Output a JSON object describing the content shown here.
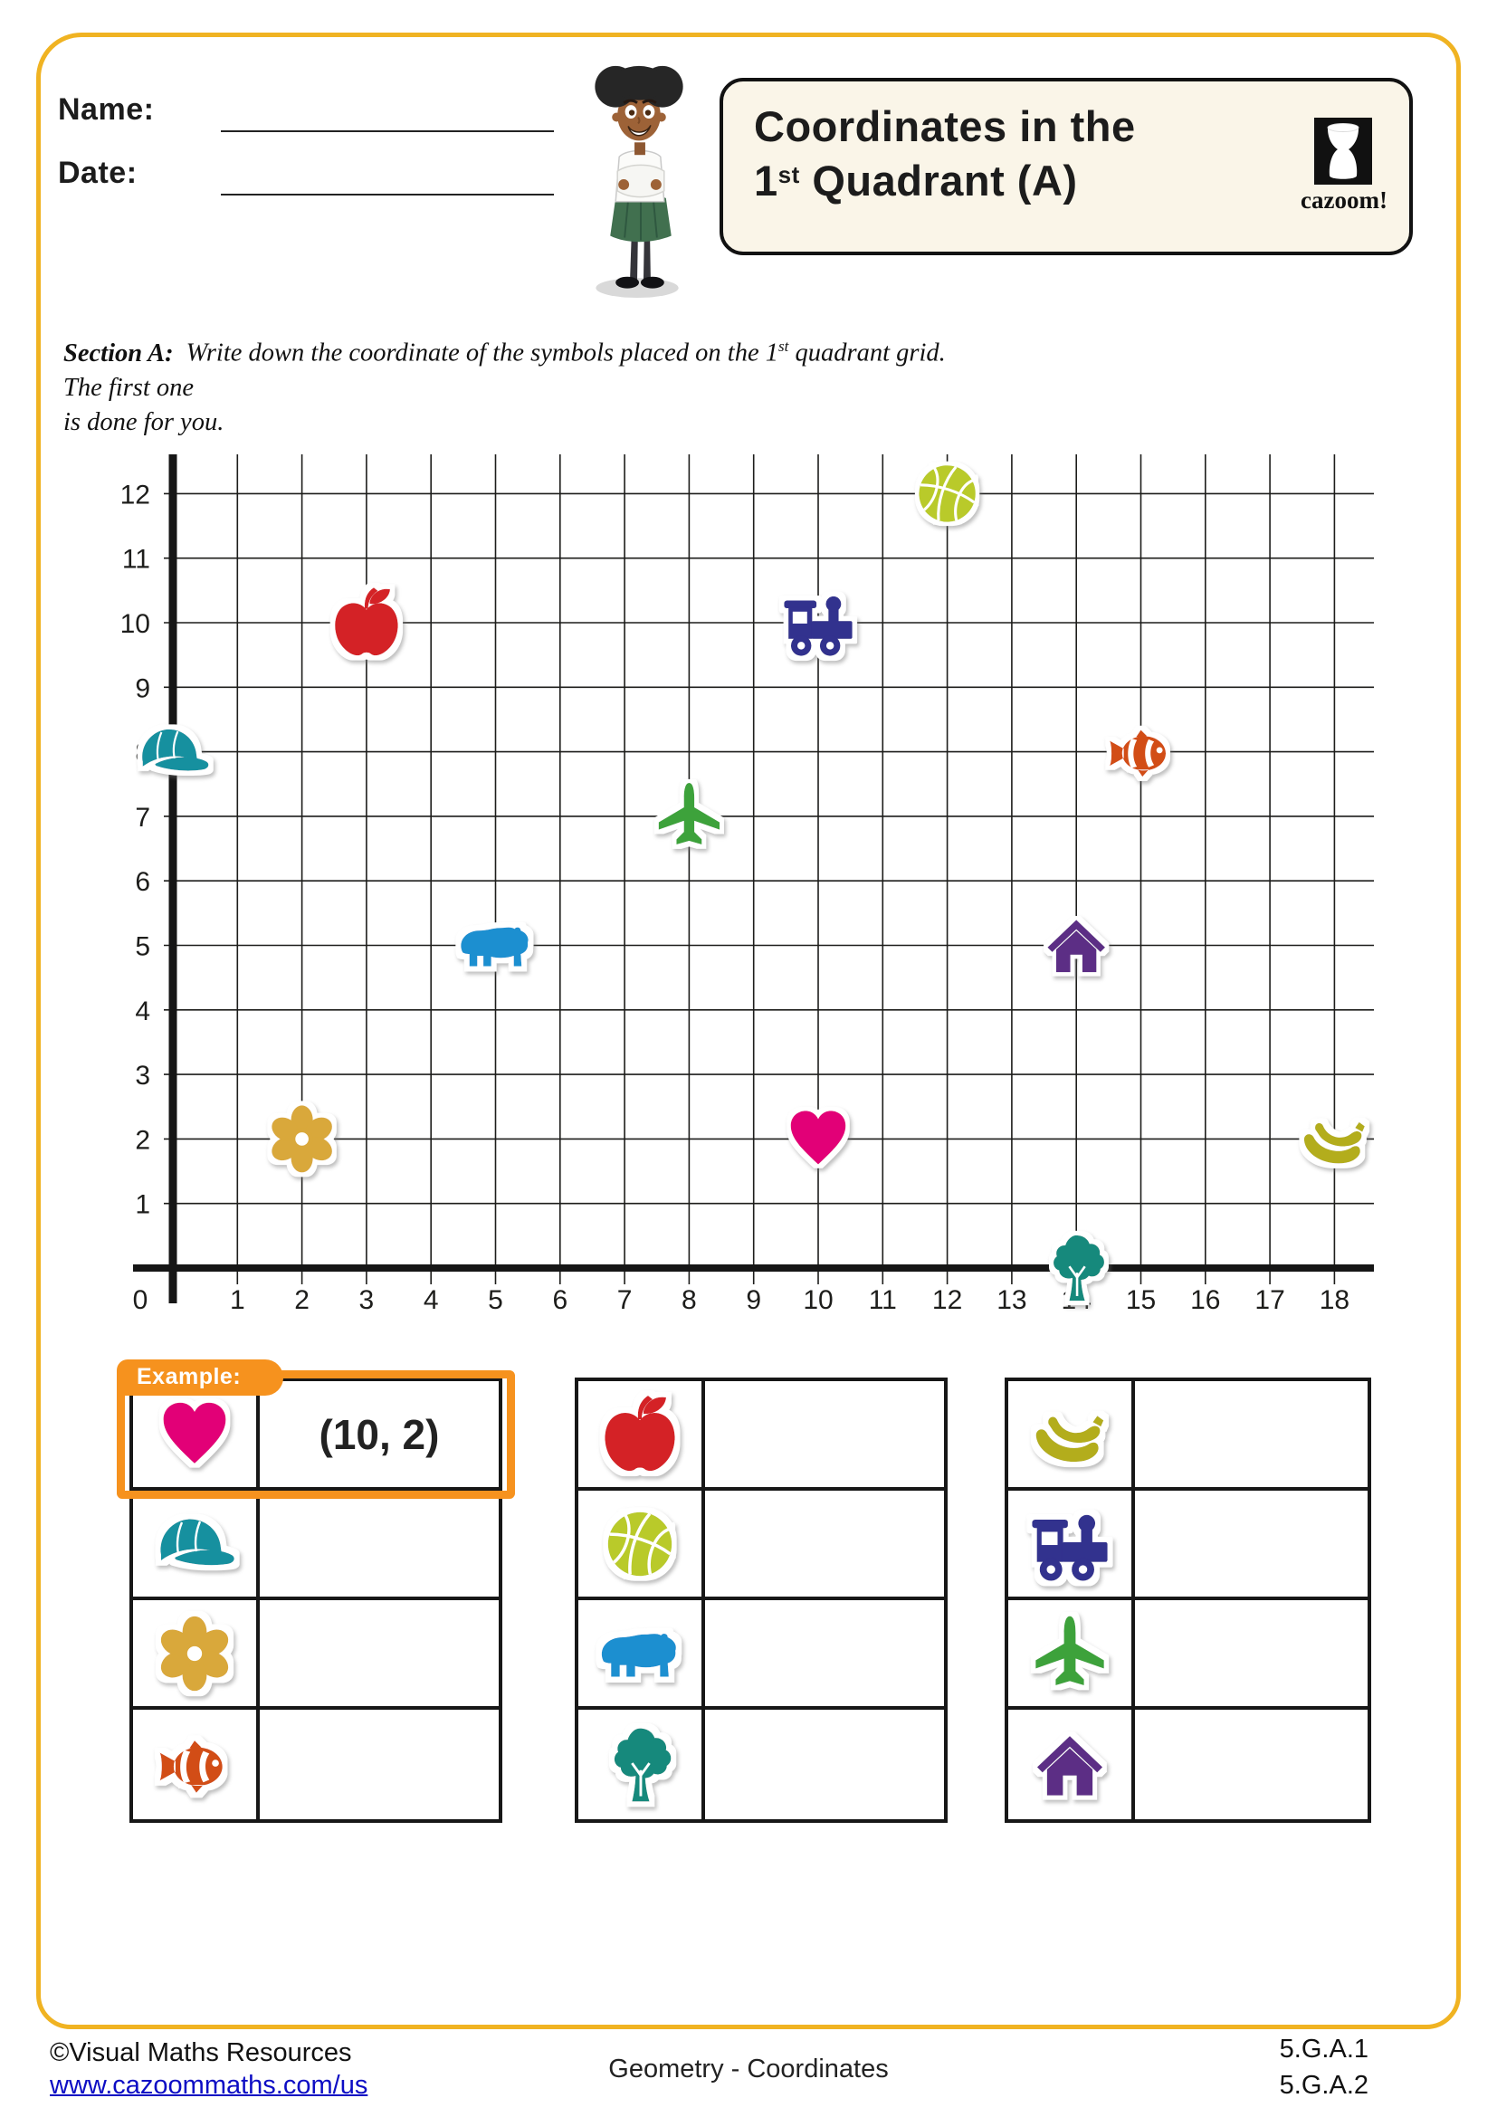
{
  "header": {
    "name_label": "Name:",
    "date_label": "Date:",
    "title_line1": "Coordinates in the",
    "title_line2_num": "1",
    "title_line2_sup": "st",
    "title_line2_rest": " Quadrant (A)",
    "logo_text": "cazoom!"
  },
  "section_a": {
    "label": "Section A:",
    "line1_before_sup": "Write down the coordinate of the symbols placed on the 1",
    "line1_sup": "st",
    "line1_after_sup": " quadrant grid. The first one",
    "line2": "is done for you."
  },
  "chart_data": {
    "type": "scatter",
    "title": "Coordinates in the 1st Quadrant (A)",
    "x_axis": {
      "min": 0,
      "max": 18,
      "tick_step": 1
    },
    "y_axis": {
      "min": 0,
      "max": 12,
      "tick_step": 1
    },
    "grid": true,
    "points": [
      {
        "symbol": "basketball",
        "x": 12,
        "y": 12
      },
      {
        "symbol": "apple",
        "x": 3,
        "y": 10
      },
      {
        "symbol": "train",
        "x": 10,
        "y": 10
      },
      {
        "symbol": "cap",
        "x": 0,
        "y": 8
      },
      {
        "symbol": "clownfish",
        "x": 15,
        "y": 8
      },
      {
        "symbol": "airplane",
        "x": 8,
        "y": 7
      },
      {
        "symbol": "bear",
        "x": 5,
        "y": 5
      },
      {
        "symbol": "house",
        "x": 14,
        "y": 5
      },
      {
        "symbol": "flower",
        "x": 2,
        "y": 2
      },
      {
        "symbol": "heart",
        "x": 10,
        "y": 2
      },
      {
        "symbol": "bananas",
        "x": 18,
        "y": 2
      },
      {
        "symbol": "tree",
        "x": 14,
        "y": 0
      }
    ]
  },
  "symbol_colors": {
    "heart": "#e20177",
    "apple": "#d42028",
    "train": "#32308e",
    "basketball": "#b9ca2a",
    "cap": "#18909f",
    "clownfish": "#d24e17",
    "airplane": "#3da23a",
    "bear": "#1f8fd0",
    "house": "#5c2d85",
    "flower": "#d9a83a",
    "bananas": "#b3ad1e",
    "tree": "#16897c"
  },
  "example": {
    "label": "Example:"
  },
  "answer_tables": [
    {
      "rows": [
        {
          "symbol": "heart",
          "answer": "(10, 2)",
          "is_example": true
        },
        {
          "symbol": "cap",
          "answer": ""
        },
        {
          "symbol": "flower",
          "answer": ""
        },
        {
          "symbol": "clownfish",
          "answer": ""
        }
      ]
    },
    {
      "rows": [
        {
          "symbol": "apple",
          "answer": ""
        },
        {
          "symbol": "basketball",
          "answer": ""
        },
        {
          "symbol": "bear",
          "answer": ""
        },
        {
          "symbol": "tree",
          "answer": ""
        }
      ]
    },
    {
      "rows": [
        {
          "symbol": "bananas",
          "answer": ""
        },
        {
          "symbol": "train",
          "answer": ""
        },
        {
          "symbol": "airplane",
          "answer": ""
        },
        {
          "symbol": "house",
          "answer": ""
        }
      ]
    }
  ],
  "footer": {
    "copyright": "©Visual Maths Resources",
    "url": "www.cazoommaths.com/us",
    "center": "Geometry - Coordinates",
    "standards": [
      "5.G.A.1",
      "5.G.A.2"
    ]
  }
}
